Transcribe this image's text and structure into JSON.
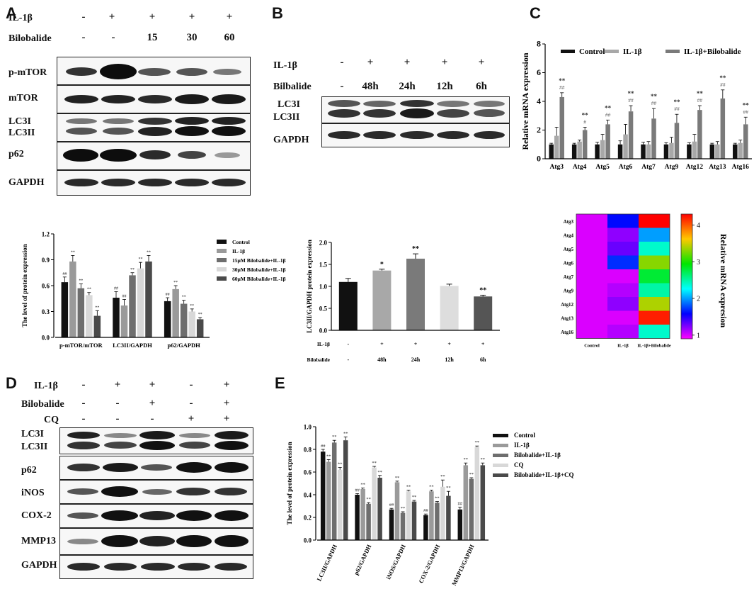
{
  "panels": {
    "A": "A",
    "B": "B",
    "C": "C",
    "D": "D",
    "E": "E"
  },
  "blotA": {
    "row1_label": "IL-1β",
    "row1_values": [
      "-",
      "+",
      "+",
      "+",
      "+"
    ],
    "row2_label": "Bilobalide",
    "row2_values": [
      "-",
      "-",
      "15",
      "30",
      "60"
    ],
    "bands": [
      "p-mTOR",
      "mTOR",
      "LC3I",
      "LC3II",
      "p62",
      "GAPDH"
    ]
  },
  "blotB": {
    "row1_label": "IL-1β",
    "row1_values": [
      "-",
      "+",
      "+",
      "+",
      "+"
    ],
    "row2_label": "Bilbalide",
    "row2_values": [
      "-",
      "48h",
      "24h",
      "12h",
      "6h"
    ],
    "bands": [
      "LC3I",
      "LC3II",
      "GAPDH"
    ]
  },
  "blotD": {
    "row1_label": "IL-1β",
    "row1_values": [
      "-",
      "+",
      "+",
      "-",
      "+"
    ],
    "row2_label": "Bilobalide",
    "row2_values": [
      "-",
      "-",
      "+",
      "-",
      "+"
    ],
    "row3_label": "CQ",
    "row3_values": [
      "-",
      "-",
      "-",
      "+",
      "+"
    ],
    "bands": [
      "LC3I",
      "LC3II",
      "p62",
      "iNOS",
      "COX-2",
      "MMP13",
      "GAPDH"
    ]
  },
  "heatmap": {
    "genes": [
      "Atg3",
      "Atg4",
      "Atg5",
      "Atg6",
      "Atg7",
      "Atg9",
      "Atg12",
      "Atg13",
      "Atg16"
    ],
    "columns": [
      "Control",
      "IL-1β",
      "IL-1β+Bilobalide"
    ],
    "values": [
      [
        1.0,
        1.6,
        4.3
      ],
      [
        1.0,
        1.2,
        2.0
      ],
      [
        1.0,
        1.3,
        2.4
      ],
      [
        1.0,
        1.7,
        3.3
      ],
      [
        1.0,
        1.0,
        2.8
      ],
      [
        1.0,
        1.1,
        2.5
      ],
      [
        1.0,
        1.2,
        3.4
      ],
      [
        1.0,
        1.0,
        4.2
      ],
      [
        1.0,
        1.1,
        2.4
      ]
    ],
    "colorbar_ticks": [
      "1",
      "2",
      "3",
      "4"
    ],
    "colorbar_label": "Relative mRNA expresion"
  },
  "chart_data": [
    {
      "panel": "A-quant",
      "type": "bar",
      "ylabel": "The level of protein expression",
      "categories": [
        "p-mTOR/mTOR",
        "LC3II/GAPDH",
        "p62/GAPDH"
      ],
      "yticks": [
        "0.0",
        "0.3",
        "0.6",
        "0.9",
        "1.2"
      ],
      "ylim": [
        0,
        1.2
      ],
      "series": [
        {
          "name": "Control",
          "color": "#111111",
          "values": [
            0.64,
            0.46,
            0.42
          ],
          "errors": [
            0.06,
            0.07,
            0.04
          ],
          "sig": [
            "##",
            "##",
            "##"
          ]
        },
        {
          "name": "IL-1β",
          "color": "#9a9a9a",
          "values": [
            0.88,
            0.37,
            0.56
          ],
          "errors": [
            0.07,
            0.07,
            0.04
          ],
          "sig": [
            "**",
            "##",
            "**"
          ]
        },
        {
          "name": "15μM Bilobalide+IL-1β",
          "color": "#6e6e6e",
          "values": [
            0.57,
            0.72,
            0.39
          ],
          "errors": [
            0.05,
            0.03,
            0.04
          ],
          "sig": [
            "**",
            "**",
            "**"
          ]
        },
        {
          "name": "30μM Bilobalide+IL-1β",
          "color": "#d8d8d8",
          "values": [
            0.49,
            0.8,
            0.3
          ],
          "errors": [
            0.03,
            0.07,
            0.03
          ],
          "sig": [
            "**",
            "**",
            "**"
          ]
        },
        {
          "name": "60μM Bilobalide+IL-1β",
          "color": "#4a4a4a",
          "values": [
            0.25,
            0.88,
            0.21
          ],
          "errors": [
            0.06,
            0.07,
            0.02
          ],
          "sig": [
            "**",
            "**",
            "**"
          ]
        }
      ]
    },
    {
      "panel": "B-quant",
      "type": "bar",
      "ylabel": "LC3II/GAPDH protein expression",
      "yticks": [
        "0.0",
        "0.5",
        "1.0",
        "1.5",
        "2.0"
      ],
      "ylim": [
        0,
        2.0
      ],
      "values": [
        1.1,
        1.36,
        1.63,
        1.01,
        0.77
      ],
      "errors": [
        0.08,
        0.03,
        0.11,
        0.04,
        0.03
      ],
      "sig": [
        "",
        "*",
        "**",
        "",
        "**"
      ],
      "colors": [
        "#111111",
        "#a8a8a8",
        "#7a7a7a",
        "#dddddd",
        "#555555"
      ],
      "x_row1_label": "IL-1β",
      "x_row1": [
        "-",
        "+",
        "+",
        "+",
        "+"
      ],
      "x_row2_label": "Bilobalide",
      "x_row2": [
        "-",
        "48h",
        "24h",
        "12h",
        "6h"
      ]
    },
    {
      "panel": "C-quant",
      "type": "bar",
      "ylabel": "Relative mRNA expression",
      "categories": [
        "Atg3",
        "Atg4",
        "Atg5",
        "Atg6",
        "Atg7",
        "Atg9",
        "Atg12",
        "Atg13",
        "Atg16"
      ],
      "yticks": [
        "0",
        "2",
        "4",
        "6",
        "8"
      ],
      "ylim": [
        0,
        8
      ],
      "series": [
        {
          "name": "Control",
          "color": "#111111",
          "values": [
            1.0,
            1.0,
            1.0,
            1.0,
            1.0,
            1.0,
            1.0,
            1.0,
            1.0
          ],
          "errors": [
            0.08,
            0.08,
            0.15,
            0.25,
            0.15,
            0.12,
            0.12,
            0.08,
            0.08
          ]
        },
        {
          "name": "IL-1β",
          "color": "#a8a8a8",
          "values": [
            1.6,
            1.2,
            1.3,
            1.7,
            1.0,
            1.1,
            1.2,
            1.0,
            1.1
          ],
          "errors": [
            0.6,
            0.1,
            0.4,
            0.7,
            0.2,
            0.4,
            0.5,
            0.2,
            0.2
          ]
        },
        {
          "name": "IL-1β+Bilobalide",
          "color": "#7a7a7a",
          "values": [
            4.3,
            2.0,
            2.4,
            3.3,
            2.8,
            2.5,
            3.4,
            4.2,
            2.4
          ],
          "errors": [
            0.3,
            0.2,
            0.3,
            0.4,
            0.7,
            0.6,
            0.3,
            0.6,
            0.5
          ]
        }
      ],
      "sig_top": "**",
      "sig_mid": [
        "##",
        "#",
        "##",
        "##",
        "##",
        "##",
        "##",
        "##",
        "##"
      ]
    },
    {
      "panel": "E-quant",
      "type": "bar",
      "ylabel": "The level of protein expression",
      "categories": [
        "LC3II/GAPDH",
        "p62/GAPDH",
        "iNOS/GAPDH",
        "COX-2/GAPDH",
        "MMP13/GAPDH"
      ],
      "yticks": [
        "0.0",
        "0.2",
        "0.4",
        "0.6",
        "0.8",
        "1.0"
      ],
      "ylim": [
        0,
        1.0
      ],
      "series": [
        {
          "name": "Control",
          "color": "#111111",
          "values": [
            0.78,
            0.4,
            0.27,
            0.22,
            0.27
          ],
          "errors": [
            0.02,
            0.01,
            0.01,
            0.01,
            0.02
          ],
          "sig": [
            "##",
            "##",
            "##",
            "##",
            "##"
          ]
        },
        {
          "name": "IL-1β",
          "color": "#9a9a9a",
          "values": [
            0.69,
            0.45,
            0.51,
            0.43,
            0.66
          ],
          "errors": [
            0.02,
            0.01,
            0.01,
            0.01,
            0.02
          ],
          "sig": [
            "**",
            "**",
            "**",
            "**",
            "**"
          ]
        },
        {
          "name": "Bilobalide+IL-1β",
          "color": "#6e6e6e",
          "values": [
            0.86,
            0.32,
            0.24,
            0.33,
            0.54
          ],
          "errors": [
            0.02,
            0.01,
            0.01,
            0.01,
            0.01
          ],
          "sig": [
            "**",
            "**",
            "**",
            "**",
            "**"
          ]
        },
        {
          "name": "CQ",
          "color": "#d8d8d8",
          "values": [
            0.62,
            0.64,
            0.43,
            0.47,
            0.82
          ],
          "errors": [
            0.02,
            0.01,
            0.01,
            0.06,
            0.01
          ],
          "sig": [
            "**",
            "**",
            "**",
            "**",
            "**"
          ]
        },
        {
          "name": "Bilobalide+IL-1β+CQ",
          "color": "#4a4a4a",
          "values": [
            0.88,
            0.55,
            0.34,
            0.39,
            0.66
          ],
          "errors": [
            0.03,
            0.02,
            0.01,
            0.04,
            0.02
          ],
          "sig": [
            "**",
            "**",
            "**",
            "**",
            "**"
          ]
        }
      ]
    }
  ]
}
